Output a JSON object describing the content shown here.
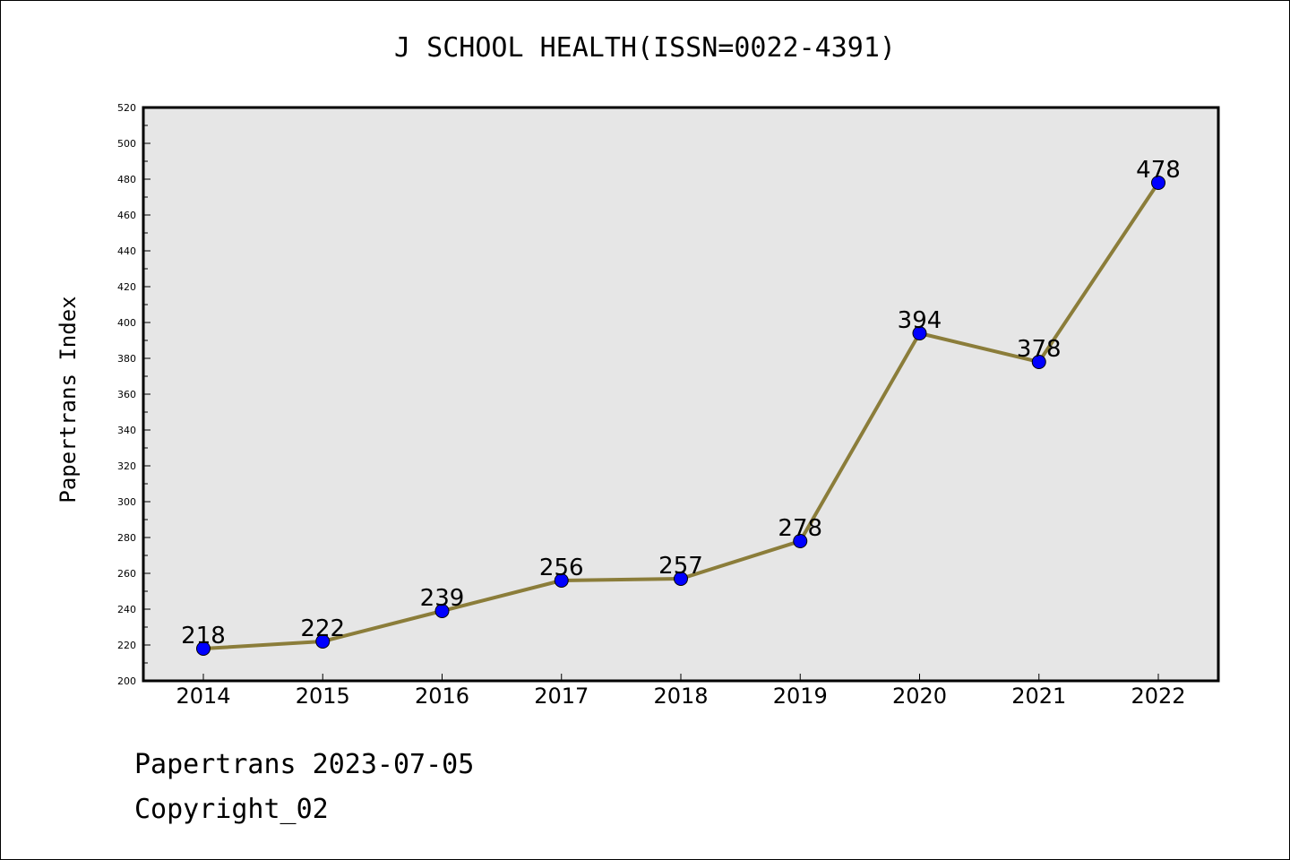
{
  "chart_data": {
    "type": "line",
    "title": "J SCHOOL HEALTH(ISSN=0022-4391)",
    "xlabel": "",
    "ylabel": "Papertrans Index",
    "categories": [
      "2014",
      "2015",
      "2016",
      "2017",
      "2018",
      "2019",
      "2020",
      "2021",
      "2022"
    ],
    "series": [
      {
        "values": [
          218,
          222,
          239,
          256,
          257,
          278,
          394,
          378,
          478
        ],
        "line_color": "#8b7d3a",
        "marker_color": "#0000ff"
      }
    ],
    "ylim": [
      200,
      520
    ],
    "y_ticks": [
      200,
      220,
      240,
      260,
      280,
      300,
      320,
      340,
      360,
      380,
      400,
      420,
      440,
      460,
      480,
      500,
      520
    ],
    "plot_background": "#e6e6e6",
    "grid": false,
    "legend": "none"
  },
  "footer": {
    "line1": "Papertrans 2023-07-05",
    "line2": "Copyright_02"
  }
}
